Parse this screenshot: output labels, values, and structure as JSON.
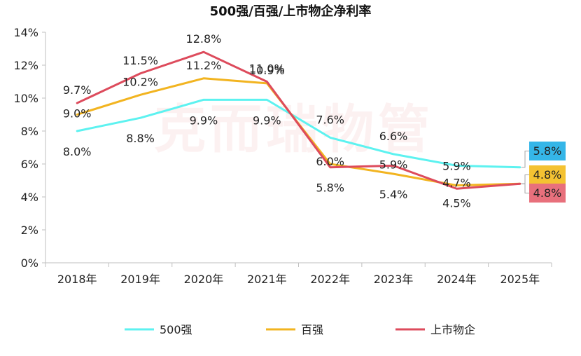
{
  "watermark": "克而瑞物管",
  "chart_data": {
    "type": "line",
    "title": "500强/百强/上市物企净利率",
    "categories": [
      "2018年",
      "2019年",
      "2020年",
      "2021年",
      "2022年",
      "2023年",
      "2024年",
      "2025年"
    ],
    "ylim": [
      0,
      14
    ],
    "yticks": [
      "0%",
      "2%",
      "4%",
      "6%",
      "8%",
      "10%",
      "12%",
      "14%"
    ],
    "grid": false,
    "legend_position": "bottom",
    "series": [
      {
        "name": "500强",
        "color": "#5df2f0",
        "values": [
          8.0,
          8.8,
          9.9,
          9.9,
          7.6,
          6.6,
          5.9,
          5.8
        ],
        "labels": [
          "8.0%",
          "8.8%",
          "9.9%",
          "9.9%",
          "7.6%",
          "6.6%",
          "5.9%",
          "5.8%"
        ],
        "callout_bg": "#35b6e8"
      },
      {
        "name": "百强",
        "color": "#f2b420",
        "values": [
          9.0,
          10.2,
          11.2,
          10.9,
          6.0,
          5.4,
          4.7,
          4.8
        ],
        "labels": [
          "9.0%",
          "10.2%",
          "11.2%",
          "10.9%",
          "6.0%",
          "5.4%",
          "4.7%",
          "4.8%"
        ],
        "callout_bg": "#f4c232"
      },
      {
        "name": "上市物企",
        "color": "#dd4b5c",
        "values": [
          9.7,
          11.5,
          12.8,
          11.0,
          5.8,
          5.9,
          4.5,
          4.8
        ],
        "labels": [
          "9.7%",
          "11.5%",
          "12.8%",
          "11.0%",
          "5.8%",
          "5.9%",
          "4.5%",
          "4.8%"
        ],
        "callout_bg": "#e8707c"
      }
    ]
  }
}
